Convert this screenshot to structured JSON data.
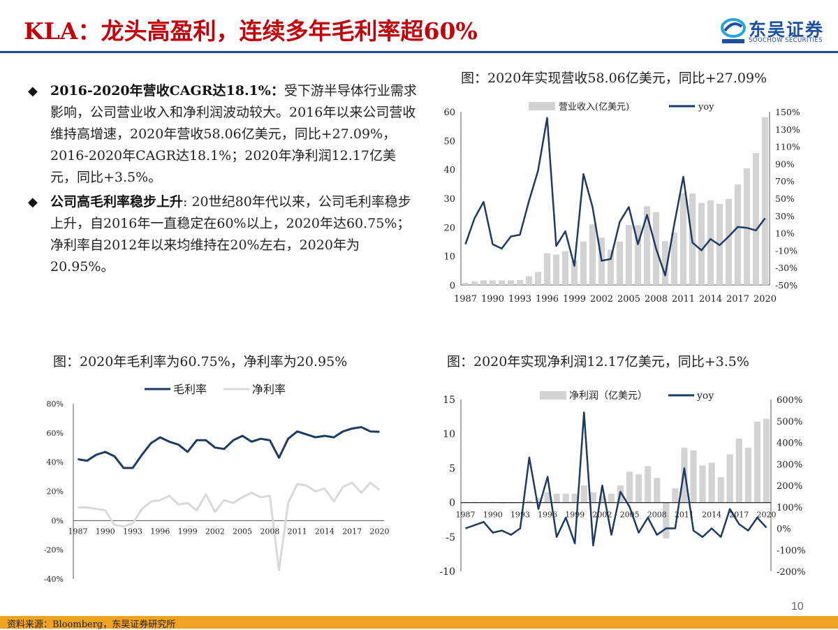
{
  "header": {
    "title": "KLA：龙头高盈利，连续多年毛利率超60%",
    "logo_cn": "东吴证券",
    "logo_en": "SOOCHOW SECURITIES"
  },
  "bullets": [
    {
      "head": "2016-2020年营收CAGR达18.1%：",
      "body": "受下游半导体行业需求影响，公司营业收入和净利润波动较大。2016年以来公司营收维持高增速，2020年营收58.06亿美元，同比+27.09%，2016-2020年CAGR达18.1%；2020年净利润12.17亿美元，同比+3.5%。"
    },
    {
      "head": "公司高毛利率稳步上升",
      "body": ": 20世纪80年代以来，公司毛利率稳步上升，自2016年一直稳定在60%以上，2020年达60.75%；净利率自2012年以来均维持在20%左右，2020年为20.95%。"
    }
  ],
  "captions": {
    "revenue": "图：2020年实现营收58.06亿美元，同比+27.09%",
    "margin": "图：2020年毛利率为60.75%，净利率为20.95%",
    "netprofit": "图：2020年实现净利润12.17亿美元，同比+3.5%"
  },
  "footer": {
    "source": "资料来源：Bloomberg，东吴证券研究所",
    "page": "10"
  },
  "colors": {
    "title_red": "#c0000a",
    "navy": "#1f3a60",
    "bar_gray": "#d3d3d3",
    "net_gray": "#d9d9d9",
    "accent_orange": "#f0a224",
    "header_blue": "#1f4e96"
  },
  "chart_data": [
    {
      "id": "revenue",
      "type": "bar+line",
      "x": [
        1987,
        1988,
        1989,
        1990,
        1991,
        1992,
        1993,
        1994,
        1995,
        1996,
        1997,
        1998,
        1999,
        2000,
        2001,
        2002,
        2003,
        2004,
        2005,
        2006,
        2007,
        2008,
        2009,
        2010,
        2011,
        2012,
        2013,
        2014,
        2015,
        2016,
        2017,
        2018,
        2019,
        2020
      ],
      "xticks": [
        "1987",
        "1990",
        "1993",
        "1996",
        "1999",
        "2002",
        "2005",
        "2008",
        "2011",
        "2014",
        "2017",
        "2020"
      ],
      "series": [
        {
          "name": "营业收入(亿美元)",
          "axis": "left",
          "type": "bar",
          "values": [
            0.7,
            1.2,
            1.6,
            1.6,
            1.6,
            1.6,
            1.7,
            3.0,
            4.5,
            11.0,
            10.5,
            11.7,
            8.4,
            15.0,
            21.0,
            16.4,
            12.2,
            15.0,
            20.8,
            20.7,
            27.3,
            25.2,
            15.2,
            18.2,
            31.8,
            31.7,
            28.4,
            29.3,
            28.1,
            29.8,
            34.8,
            40.4,
            45.7,
            58.1
          ]
        },
        {
          "name": "yoy",
          "axis": "right",
          "type": "line",
          "values": [
            -3,
            27,
            46,
            -3,
            -8,
            6,
            8,
            47,
            82,
            143,
            -5,
            12,
            -28,
            78,
            40,
            -22,
            -20,
            23,
            40,
            -3,
            31,
            -8,
            -39,
            20,
            75,
            -1,
            -10,
            3,
            -4,
            6,
            17,
            16,
            13,
            27
          ]
        }
      ],
      "yleft": {
        "ticks": [
          "0",
          "10",
          "20",
          "30",
          "40",
          "50",
          "60"
        ],
        "lim": [
          0,
          60
        ]
      },
      "yright": {
        "ticks": [
          "-50%",
          "-30%",
          "-10%",
          "10%",
          "30%",
          "50%",
          "70%",
          "90%",
          "110%",
          "130%",
          "150%"
        ],
        "lim": [
          -50,
          150
        ]
      }
    },
    {
      "id": "margin",
      "type": "line",
      "x": [
        1987,
        1988,
        1989,
        1990,
        1991,
        1992,
        1993,
        1994,
        1995,
        1996,
        1997,
        1998,
        1999,
        2000,
        2001,
        2002,
        2003,
        2004,
        2005,
        2006,
        2007,
        2008,
        2009,
        2010,
        2011,
        2012,
        2013,
        2014,
        2015,
        2016,
        2017,
        2018,
        2019,
        2020
      ],
      "xticks": [
        "1987",
        "1990",
        "1993",
        "1996",
        "1999",
        "2002",
        "2005",
        "2008",
        "2011",
        "2014",
        "2017",
        "2020"
      ],
      "series": [
        {
          "name": "毛利率",
          "values": [
            42,
            41,
            45,
            47,
            44,
            36,
            36,
            45,
            53,
            57,
            54,
            52,
            47,
            55,
            55,
            50,
            49,
            55,
            58,
            54,
            56,
            55,
            43,
            56,
            61,
            59,
            57,
            58,
            57,
            61,
            63,
            64,
            61,
            60.75
          ]
        },
        {
          "name": "净利率",
          "values": [
            9,
            9,
            8,
            7,
            -3,
            -4,
            -2,
            8,
            13,
            14,
            17,
            11,
            12,
            7,
            18,
            6,
            14,
            12,
            16,
            19,
            16,
            17,
            -34,
            12,
            25,
            24,
            20,
            22,
            13,
            23,
            26,
            19,
            26,
            20.95
          ]
        }
      ],
      "y": {
        "ticks": [
          "80%",
          "60%",
          "40%",
          "20%",
          "0%",
          "-20%",
          "-40%"
        ],
        "lim": [
          -40,
          80
        ]
      }
    },
    {
      "id": "netprofit",
      "type": "bar+line",
      "x": [
        1987,
        1988,
        1989,
        1990,
        1991,
        1992,
        1993,
        1994,
        1995,
        1996,
        1997,
        1998,
        1999,
        2000,
        2001,
        2002,
        2003,
        2004,
        2005,
        2006,
        2007,
        2008,
        2009,
        2010,
        2011,
        2012,
        2013,
        2014,
        2015,
        2016,
        2017,
        2018,
        2019,
        2020
      ],
      "xticks": [
        "1987",
        "1990",
        "1993",
        "1996",
        "1999",
        "2002",
        "2005",
        "2008",
        "2011",
        "2014",
        "2017",
        "2020"
      ],
      "series": [
        {
          "name": "净利润（亿美元）",
          "axis": "left",
          "type": "bar",
          "values": [
            0.1,
            0.1,
            0.1,
            0.1,
            -0.1,
            -0.1,
            0,
            0.3,
            0.7,
            1.5,
            1.3,
            1.3,
            1.3,
            2.5,
            1.5,
            1.0,
            1.3,
            2.5,
            4.5,
            4.1,
            5.3,
            3.6,
            -5.2,
            2.1,
            8.0,
            7.6,
            5.4,
            5.8,
            3.7,
            7.0,
            9.3,
            8.0,
            11.8,
            12.2
          ]
        },
        {
          "name": "yoy",
          "axis": "right",
          "type": "line",
          "values": [
            0,
            15,
            30,
            -20,
            -10,
            -30,
            0,
            330,
            90,
            240,
            -40,
            50,
            -70,
            540,
            -80,
            200,
            -30,
            170,
            100,
            -20,
            50,
            -30,
            0,
            0,
            280,
            -10,
            -40,
            0,
            -40,
            90,
            20,
            -10,
            50,
            3.5
          ]
        }
      ],
      "yleft": {
        "ticks": [
          "15",
          "10",
          "5",
          "0",
          "-5",
          "-10"
        ],
        "lim": [
          -10,
          15
        ]
      },
      "yright": {
        "ticks": [
          "600%",
          "500%",
          "400%",
          "300%",
          "200%",
          "100%",
          "0%",
          "-100%",
          "-200%"
        ],
        "lim": [
          -200,
          600
        ]
      }
    }
  ]
}
